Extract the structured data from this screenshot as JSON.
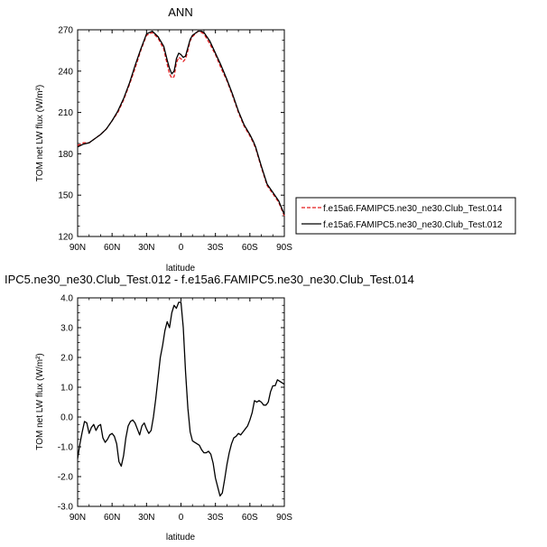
{
  "chart_data": [
    {
      "type": "line",
      "title": "ANN",
      "xlabel": "latitude",
      "ylabel": "TOM net LW flux (W/m²)",
      "xlim": [
        90,
        -90
      ],
      "ylim": [
        120,
        270
      ],
      "xticks": [
        {
          "v": 90,
          "label": "90N"
        },
        {
          "v": 60,
          "label": "60N"
        },
        {
          "v": 30,
          "label": "30N"
        },
        {
          "v": 0,
          "label": "0"
        },
        {
          "v": -30,
          "label": "30S"
        },
        {
          "v": -60,
          "label": "60S"
        },
        {
          "v": -90,
          "label": "90S"
        }
      ],
      "yticks": [
        120,
        150,
        180,
        210,
        240,
        270
      ],
      "grid": false,
      "legend_placement": "right",
      "series": [
        {
          "name": "f.e15a6.FAMIPC5.ne30_ne30.Club_Test.014",
          "color": "#e41a1c",
          "dash": true,
          "x": [
            90,
            85,
            80,
            75,
            70,
            65,
            60,
            55,
            50,
            45,
            40,
            35,
            30,
            25,
            20,
            15,
            12,
            10,
            8,
            6,
            5,
            4,
            2,
            0,
            -2,
            -4,
            -6,
            -8,
            -10,
            -15,
            -18,
            -20,
            -25,
            -30,
            -35,
            -40,
            -45,
            -50,
            -55,
            -60,
            -63,
            -65,
            -70,
            -75,
            -80,
            -85,
            -90
          ],
          "y": [
            186,
            188,
            188,
            191,
            194,
            198,
            204,
            210,
            219,
            230,
            242,
            255,
            266,
            268,
            264,
            256,
            245,
            238,
            235,
            236,
            241,
            246,
            250,
            249,
            247,
            249,
            255,
            262,
            265,
            269,
            268,
            267,
            260,
            252,
            242,
            233,
            222,
            210,
            200,
            193,
            188,
            184,
            170,
            157,
            151,
            145,
            135
          ]
        },
        {
          "name": "f.e15a6.FAMIPC5.ne30_ne30.Club_Test.012",
          "color": "#000000",
          "dash": false,
          "x": [
            90,
            85,
            80,
            75,
            70,
            65,
            60,
            55,
            50,
            45,
            40,
            35,
            30,
            25,
            20,
            15,
            12,
            10,
            8,
            6,
            5,
            4,
            2,
            0,
            -2,
            -4,
            -6,
            -8,
            -10,
            -15,
            -18,
            -20,
            -25,
            -30,
            -35,
            -40,
            -45,
            -50,
            -55,
            -60,
            -63,
            -65,
            -70,
            -75,
            -80,
            -85,
            -90
          ],
          "y": [
            185,
            187,
            188,
            191,
            194,
            198,
            204,
            211,
            220,
            231,
            244,
            256,
            267,
            269,
            265,
            258,
            248,
            242,
            238,
            240,
            244,
            249,
            253,
            252,
            250,
            251,
            257,
            263,
            266,
            269,
            269,
            268,
            262,
            253,
            244,
            234,
            223,
            211,
            201,
            194,
            189,
            185,
            171,
            158,
            152,
            146,
            136
          ]
        }
      ]
    },
    {
      "type": "line",
      "title": "IPC5.ne30_ne30.Club_Test.012 - f.e15a6.FAMIPC5.ne30_ne30.Club_Test.014",
      "xlabel": "latitude",
      "ylabel": "TOM net LW flux (W/m²)",
      "xlim": [
        90,
        -90
      ],
      "ylim": [
        -3.0,
        4.0
      ],
      "xticks": [
        {
          "v": 90,
          "label": "90N"
        },
        {
          "v": 60,
          "label": "60N"
        },
        {
          "v": 30,
          "label": "30N"
        },
        {
          "v": 0,
          "label": "0"
        },
        {
          "v": -30,
          "label": "30S"
        },
        {
          "v": -60,
          "label": "60S"
        },
        {
          "v": -90,
          "label": "90S"
        }
      ],
      "yticks": [
        {
          "v": -3.0,
          "label": "-3.0"
        },
        {
          "v": -2.0,
          "label": "-2.0"
        },
        {
          "v": -1.0,
          "label": "-1.0"
        },
        {
          "v": 0.0,
          "label": "0.0"
        },
        {
          "v": 1.0,
          "label": "1.0"
        },
        {
          "v": 2.0,
          "label": "2.0"
        },
        {
          "v": 3.0,
          "label": "3.0"
        },
        {
          "v": 4.0,
          "label": "4.0"
        }
      ],
      "grid": false,
      "series": [
        {
          "color": "#000000",
          "x": [
            90,
            88,
            86,
            84,
            82,
            80,
            78,
            76,
            74,
            72,
            70,
            68,
            66,
            64,
            62,
            60,
            58,
            56,
            54,
            52,
            50,
            48,
            46,
            44,
            42,
            40,
            38,
            36,
            34,
            32,
            30,
            28,
            26,
            24,
            22,
            20,
            18,
            16,
            14,
            12,
            10,
            8,
            6,
            4,
            2,
            0,
            -2,
            -4,
            -6,
            -8,
            -10,
            -12,
            -14,
            -16,
            -18,
            -20,
            -22,
            -24,
            -26,
            -28,
            -30,
            -32,
            -34,
            -36,
            -38,
            -40,
            -42,
            -44,
            -46,
            -48,
            -50,
            -52,
            -54,
            -56,
            -58,
            -60,
            -62,
            -64,
            -66,
            -68,
            -70,
            -72,
            -74,
            -76,
            -78,
            -80,
            -82,
            -84,
            -86,
            -88,
            -90
          ],
          "y": [
            -1.4,
            -0.9,
            -0.5,
            -0.15,
            -0.2,
            -0.55,
            -0.35,
            -0.25,
            -0.45,
            -0.3,
            -0.25,
            -0.7,
            -0.85,
            -0.75,
            -0.6,
            -0.55,
            -0.65,
            -0.9,
            -1.5,
            -1.65,
            -1.3,
            -0.7,
            -0.3,
            -0.15,
            -0.1,
            -0.2,
            -0.4,
            -0.6,
            -0.3,
            -0.2,
            -0.4,
            -0.55,
            -0.45,
            0.0,
            0.6,
            1.3,
            2.0,
            2.4,
            2.9,
            3.2,
            3.0,
            3.5,
            3.75,
            3.65,
            3.85,
            3.85,
            3.0,
            1.5,
            0.3,
            -0.5,
            -0.8,
            -0.85,
            -0.9,
            -0.95,
            -1.1,
            -1.2,
            -1.2,
            -1.15,
            -1.25,
            -1.55,
            -2.05,
            -2.35,
            -2.65,
            -2.55,
            -2.1,
            -1.6,
            -1.2,
            -0.9,
            -0.7,
            -0.65,
            -0.55,
            -0.6,
            -0.5,
            -0.4,
            -0.3,
            -0.1,
            0.15,
            0.55,
            0.5,
            0.55,
            0.5,
            0.4,
            0.4,
            0.5,
            0.85,
            1.05,
            1.05,
            1.25,
            1.2,
            1.15,
            1.1
          ]
        }
      ]
    }
  ]
}
